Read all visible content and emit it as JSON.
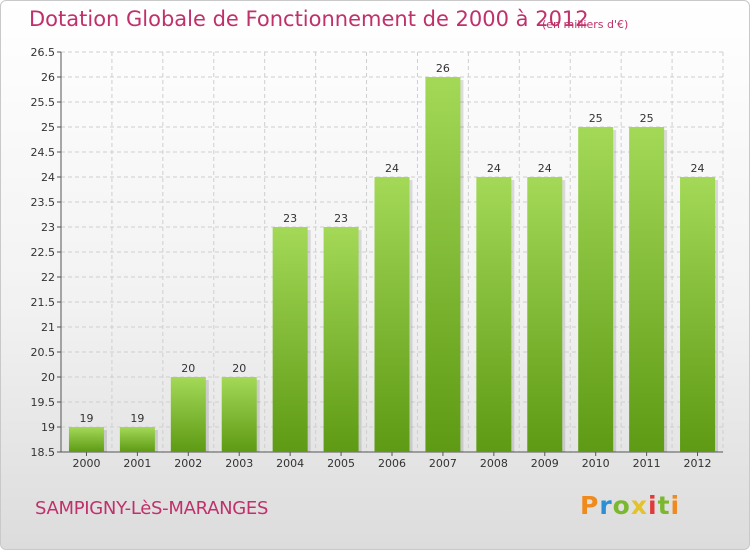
{
  "header": {
    "title": "Dotation Globale de Fonctionnement de 2000 à 2012",
    "unit_note": "(en milliers d'€)"
  },
  "footer": {
    "commune": "SAMPIGNY-LèS-MARANGES",
    "logo_letters": [
      "P",
      "r",
      "o",
      "x",
      "i",
      "t",
      "i"
    ]
  },
  "colors": {
    "title": "#c0306a",
    "bar_top": "#a3d957",
    "bar_bottom": "#5e9a14"
  },
  "chart_data": {
    "type": "bar",
    "title": "Dotation Globale de Fonctionnement de 2000 à 2012",
    "subtitle": "(en milliers d'€)",
    "xlabel": "",
    "ylabel": "",
    "categories": [
      "2000",
      "2001",
      "2002",
      "2003",
      "2004",
      "2005",
      "2006",
      "2007",
      "2008",
      "2009",
      "2010",
      "2011",
      "2012"
    ],
    "values": [
      19,
      19,
      20,
      20,
      23,
      23,
      24,
      26,
      24,
      24,
      25,
      25,
      24
    ],
    "data_labels": [
      "19",
      "19",
      "20",
      "20",
      "23",
      "23",
      "24",
      "26",
      "24",
      "24",
      "25",
      "25",
      "24"
    ],
    "ylim": [
      18.5,
      26.5
    ],
    "yticks": [
      18.5,
      19,
      19.5,
      20,
      20.5,
      21,
      21.5,
      22,
      22.5,
      23,
      23.5,
      24,
      24.5,
      25,
      25.5,
      26,
      26.5
    ],
    "ytick_labels": [
      "18.5",
      "19",
      "19.5",
      "20",
      "20.5",
      "21",
      "21.5",
      "22",
      "22.5",
      "23",
      "23.5",
      "24",
      "24.5",
      "25",
      "25.5",
      "26",
      "26.5"
    ],
    "grid": true,
    "legend": "none"
  }
}
